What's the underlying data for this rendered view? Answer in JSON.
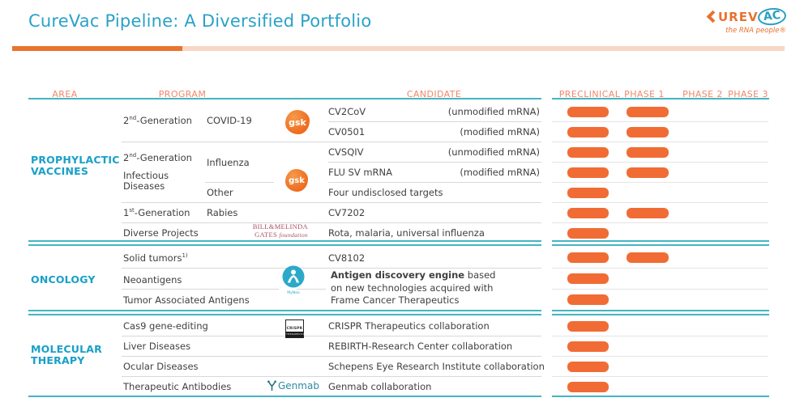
{
  "slide": {
    "title": "CureVac Pipeline: A Diversified Portfolio"
  },
  "logo": {
    "mid": "UREV",
    "ac": "AC",
    "tagline": "the RNA people®"
  },
  "colors": {
    "title_teal": "#2AA2C8",
    "area_teal": "#18A0C8",
    "line_teal": "#45B5C1",
    "bar_orange": "#F16C34",
    "header_orange": "#F0876B",
    "accent_dark_orange": "#E8742F",
    "accent_light_orange": "#F7D7C3"
  },
  "header": {
    "area": "AREA",
    "program": "PROGRAM",
    "candidate": "CANDIDATE",
    "phases": [
      "PRECLINICAL",
      "PHASE 1",
      "PHASE 2",
      "PHASE 3"
    ]
  },
  "partners": {
    "gsk": {
      "label": "gsk"
    },
    "gates": {
      "line1": "BILL&MELINDA",
      "line2a": "GATES",
      "line2b": "foundation"
    },
    "myneo": {
      "label": "MyNeo"
    },
    "crispr": {
      "line1": "CRISPR",
      "line2": "THERAPEUTICS"
    },
    "genmab": {
      "label": "Genmab"
    }
  },
  "prophylactic": {
    "area1": "PROPHYLACTIC",
    "area2": "VACCINES",
    "groups": {
      "covid": {
        "gen": "2",
        "sup": "nd",
        "rest": "-Generation",
        "program": "COVID-19"
      },
      "infectious": {
        "gen": "2",
        "sup": "nd",
        "rest": "-Generation",
        "line2": "Infectious",
        "line3": "Diseases",
        "sub1": "Influenza",
        "sub2": "Other"
      },
      "rabies": {
        "gen": "1",
        "sup": "st",
        "rest": "-Generation",
        "program": "Rabies"
      },
      "diverse": {
        "program": "Diverse Projects"
      }
    },
    "rows": [
      {
        "name": "CV2CoV",
        "qualifier": "(unmodified mRNA)",
        "phases": [
          "preclinical",
          "phase1"
        ]
      },
      {
        "name": "CV0501",
        "qualifier": "(modified mRNA)",
        "phases": [
          "preclinical",
          "phase1"
        ]
      },
      {
        "name": "CVSQIV",
        "qualifier": "(unmodified mRNA)",
        "phases": [
          "preclinical",
          "phase1"
        ]
      },
      {
        "name": "FLU SV mRNA",
        "qualifier": "(modified mRNA)",
        "phases": [
          "preclinical",
          "phase1"
        ]
      },
      {
        "name": "Four undisclosed targets",
        "qualifier": "",
        "phases": [
          "preclinical"
        ]
      },
      {
        "name": "CV7202",
        "qualifier": "",
        "phases": [
          "preclinical",
          "phase1"
        ]
      },
      {
        "name": "Rota, malaria, universal influenza",
        "qualifier": "",
        "phases": [
          "preclinical"
        ]
      }
    ]
  },
  "oncology": {
    "area": "ONCOLOGY",
    "programs": [
      {
        "text": "Solid tumors",
        "sup": "1)"
      },
      {
        "text": "Neoantigens",
        "sup": ""
      },
      {
        "text": "Tumor Associated Antigens",
        "sup": ""
      }
    ],
    "engine": {
      "bold": "Antigen discovery engine",
      "rest": " based",
      "line2": "on new technologies acquired with",
      "line3": "Frame Cancer Therapeutics"
    },
    "rows": [
      {
        "name": "CV8102",
        "phases": [
          "preclinical",
          "phase1"
        ]
      },
      {
        "name": "",
        "phases": [
          "preclinical"
        ]
      },
      {
        "name": "",
        "phases": [
          "preclinical"
        ]
      }
    ]
  },
  "molecular": {
    "area1": "MOLECULAR",
    "area2": "THERAPY",
    "rows": [
      {
        "program": "Cas9 gene-editing",
        "candidate": "CRISPR Therapeutics collaboration",
        "phases": [
          "preclinical"
        ]
      },
      {
        "program": "Liver Diseases",
        "candidate": "REBIRTH-Research Center collaboration",
        "phases": [
          "preclinical"
        ]
      },
      {
        "program": "Ocular Diseases",
        "candidate": "Schepens Eye Research Institute collaboration",
        "phases": [
          "preclinical"
        ]
      },
      {
        "program": "Therapeutic Antibodies",
        "candidate": "Genmab collaboration",
        "phases": [
          "preclinical"
        ]
      }
    ]
  }
}
